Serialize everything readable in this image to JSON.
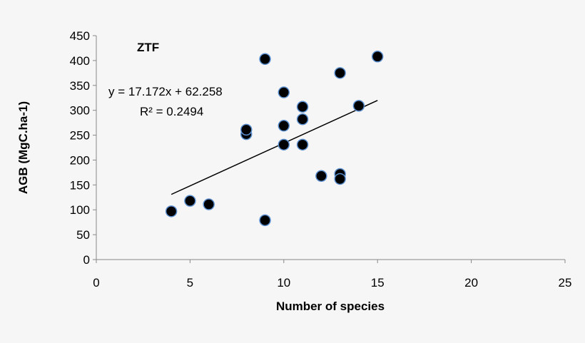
{
  "chart_data": {
    "type": "scatter",
    "title": "ZTF",
    "xlabel": "Number of species",
    "ylabel": "AGB (MgC.ha-1)",
    "xlim": [
      0,
      25
    ],
    "ylim": [
      0,
      450
    ],
    "xticks": [
      0,
      5,
      10,
      15,
      20,
      25
    ],
    "yticks": [
      0,
      50,
      100,
      150,
      200,
      250,
      300,
      350,
      400,
      450
    ],
    "grid": false,
    "points": [
      {
        "x": 4,
        "y": 97
      },
      {
        "x": 5,
        "y": 118
      },
      {
        "x": 6,
        "y": 111
      },
      {
        "x": 8,
        "y": 252
      },
      {
        "x": 8,
        "y": 261
      },
      {
        "x": 9,
        "y": 403
      },
      {
        "x": 9,
        "y": 79
      },
      {
        "x": 10,
        "y": 336
      },
      {
        "x": 10,
        "y": 269
      },
      {
        "x": 10,
        "y": 231
      },
      {
        "x": 11,
        "y": 307
      },
      {
        "x": 11,
        "y": 282
      },
      {
        "x": 11,
        "y": 231
      },
      {
        "x": 12,
        "y": 168
      },
      {
        "x": 13,
        "y": 375
      },
      {
        "x": 13,
        "y": 172
      },
      {
        "x": 13,
        "y": 162
      },
      {
        "x": 14,
        "y": 309
      },
      {
        "x": 15,
        "y": 408
      }
    ],
    "trendline": {
      "slope": 17.172,
      "intercept": 62.258,
      "x_range": [
        4,
        15
      ]
    },
    "equation": "y = 17.172x + 62.258",
    "r_squared": "R² = 0.2494",
    "colors": {
      "marker": "#000000",
      "marker_edge": "#5b8fd0",
      "trendline": "#000000",
      "axis": "#888888"
    }
  }
}
